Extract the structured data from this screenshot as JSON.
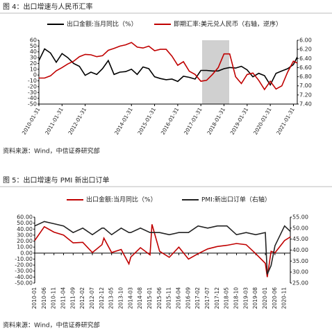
{
  "chart_data": [
    {
      "type": "line",
      "title": "图 4：出口增速与人民币汇率",
      "source": "资料来源：Wind，中信证券研究部",
      "x": [
        "2010-01-31",
        "2010-04-30",
        "2010-07-31",
        "2010-10-31",
        "2011-01-31",
        "2011-04-30",
        "2011-07-31",
        "2011-10-31",
        "2012-01-31",
        "2012-04-30",
        "2012-07-31",
        "2012-10-31",
        "2013-01-31",
        "2013-04-30",
        "2013-07-31",
        "2013-10-31",
        "2014-01-31",
        "2014-04-30",
        "2014-07-31",
        "2014-10-31",
        "2015-01-31",
        "2015-04-30",
        "2015-07-31",
        "2015-10-31",
        "2016-01-31",
        "2016-04-30",
        "2016-07-31",
        "2016-10-31",
        "2017-01-31",
        "2017-04-30",
        "2017-07-31",
        "2017-10-31",
        "2018-01-31",
        "2018-04-30",
        "2018-07-31",
        "2018-10-31",
        "2019-01-31",
        "2019-04-30",
        "2019-07-31",
        "2019-10-31",
        "2020-01-31",
        "2020-04-30",
        "2020-07-31",
        "2020-10-31",
        "2021-01-31",
        "2021-03-31"
      ],
      "xticks": [
        "2010-01-31",
        "2011-01-31",
        "2012-01-31",
        "2014-01-31",
        "2015-01-31",
        "2016-01-31",
        "2017-01-31",
        "2018-01-31",
        "2019-01-31",
        "2020-01-31",
        "2021-01-31"
      ],
      "series": [
        {
          "name": "出口金额:当月同比（%）",
          "color": "#000000",
          "values": [
            25,
            45,
            38,
            22,
            37,
            30,
            20,
            15,
            -0.5,
            5,
            1,
            11,
            25,
            1,
            5,
            6,
            10,
            1,
            14,
            11,
            -3,
            -6,
            -8,
            -7,
            -11,
            -2,
            -4,
            -7,
            8,
            8,
            7,
            7,
            11,
            13,
            12,
            15,
            9,
            -3,
            3,
            -1,
            -17,
            3,
            7,
            11,
            18,
            31
          ]
        },
        {
          "name": "即期汇率:美元兑人民币（右轴，逆序）",
          "color": "#c00000",
          "axis": "y2",
          "values": [
            6.83,
            6.83,
            6.78,
            6.67,
            6.6,
            6.52,
            6.46,
            6.36,
            6.31,
            6.32,
            6.36,
            6.34,
            6.22,
            6.18,
            6.13,
            6.1,
            6.05,
            6.15,
            6.17,
            6.13,
            6.23,
            6.2,
            6.2,
            6.35,
            6.55,
            6.47,
            6.68,
            6.75,
            6.9,
            6.88,
            6.75,
            6.6,
            6.3,
            6.3,
            6.8,
            6.95,
            6.75,
            6.72,
            6.88,
            7.08,
            6.9,
            7.07,
            7.0,
            6.7,
            6.46,
            6.5
          ]
        }
      ],
      "ylim": [
        -50,
        60
      ],
      "yticks": [
        60,
        50,
        40,
        30,
        20,
        10,
        0,
        -10,
        -20,
        -30,
        -40,
        -50
      ],
      "y2lim": [
        6.0,
        7.4
      ],
      "y2_inverted": true,
      "y2ticks": [
        {
          "value": 6.0,
          "label": "6.00"
        },
        {
          "value": 6.2,
          "label": "6.20"
        },
        {
          "value": 6.4,
          "label": "6.40"
        },
        {
          "value": 6.6,
          "label": "6.60"
        },
        {
          "value": 6.8,
          "label": "6.80"
        },
        {
          "value": 7.0,
          "label": "7.00"
        },
        {
          "value": 7.2,
          "label": "7.20"
        },
        {
          "value": 7.4,
          "label": "7.40"
        }
      ]
    },
    {
      "type": "line",
      "title": "图 5：出口增速与 PMI 新出口订单",
      "source": "资料来源：Wind，中信证券研究部",
      "x": [
        "2010-01",
        "2010-06",
        "2010-11",
        "2011-04",
        "2011-09",
        "2012-02",
        "2012-07",
        "2012-12",
        "2013-01",
        "2013-05",
        "2013-10",
        "2014-02",
        "2014-03",
        "2014-08",
        "2015-01",
        "2015-02",
        "2015-06",
        "2015-11",
        "2016-04",
        "2016-09",
        "2017-02",
        "2017-07",
        "2017-12",
        "2018-05",
        "2018-10",
        "2019-03",
        "2019-08",
        "2020-01",
        "2020-02",
        "2020-04",
        "2020-06",
        "2020-11",
        "2021-02"
      ],
      "xticks": [
        "2010-01",
        "2010-06",
        "2010-11",
        "2011-04",
        "2011-09",
        "2012-02",
        "2012-07",
        "2012-12",
        "2013-05",
        "2013-10",
        "2014-03",
        "2014-08",
        "2015-01",
        "2015-06",
        "2015-11",
        "2016-04",
        "2016-09",
        "2017-02",
        "2017-07",
        "2017-12",
        "2018-05",
        "2018-10",
        "2019-03",
        "2019-08",
        "2020-01",
        "2020-06",
        "2020-11"
      ],
      "series": [
        {
          "name": "出口金额:当月同比（%）",
          "color": "#c00000",
          "values": [
            21,
            44,
            35,
            30,
            17,
            18,
            1,
            14,
            25,
            1,
            6,
            -18,
            -6.6,
            9,
            -3,
            48,
            3,
            -7,
            10,
            -10,
            -1,
            7,
            11,
            13,
            16,
            14,
            -1,
            -17,
            -40,
            3,
            0.5,
            21,
            27
          ]
        },
        {
          "name": "PMI:新出口订单（右轴）",
          "color": "#222222",
          "axis": "y2",
          "values": [
            51,
            53,
            52,
            51,
            48,
            50,
            47,
            50,
            50,
            47,
            50,
            48,
            48,
            50,
            48,
            48,
            48,
            47,
            48,
            48,
            51,
            50,
            51,
            51,
            47,
            48,
            47,
            48,
            29,
            33,
            42,
            51,
            48.5
          ]
        }
      ],
      "ylim": [
        -50,
        60
      ],
      "yticks": [
        {
          "value": 60,
          "label": "60.00"
        },
        {
          "value": 50,
          "label": "50.00"
        },
        {
          "value": 40,
          "label": "40.00"
        },
        {
          "value": 30,
          "label": "30.00"
        },
        {
          "value": 20,
          "label": "20.00"
        },
        {
          "value": 10,
          "label": "10.00"
        },
        {
          "value": 0,
          "label": "0.00"
        },
        {
          "value": -10,
          "label": "-10.00"
        },
        {
          "value": -20,
          "label": "-20.00"
        },
        {
          "value": -30,
          "label": "-30.00"
        },
        {
          "value": -40,
          "label": "-40.00"
        },
        {
          "value": -50,
          "label": "-50.00"
        }
      ],
      "y2lim": [
        25,
        55
      ],
      "y2ticks": [
        {
          "value": 25,
          "label": "25.00"
        },
        {
          "value": 30,
          "label": "30.00"
        },
        {
          "value": 35,
          "label": "35.00"
        },
        {
          "value": 40,
          "label": "40.00"
        },
        {
          "value": 45,
          "label": "45.00"
        },
        {
          "value": 50,
          "label": "50.00"
        },
        {
          "value": 55,
          "label": "55.00"
        }
      ]
    }
  ]
}
